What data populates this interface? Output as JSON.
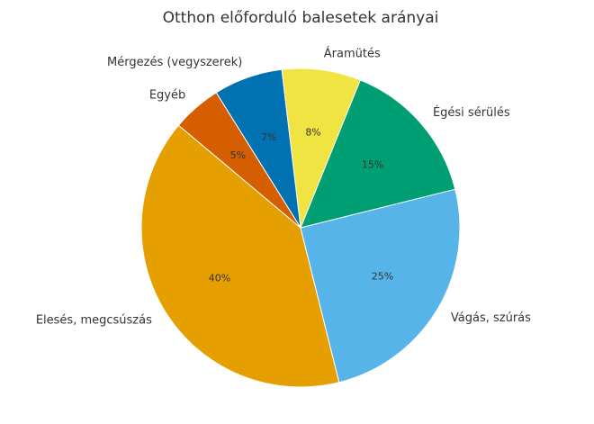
{
  "chart_data": {
    "type": "pie",
    "title": "Otthon előforduló balesetek arányai",
    "categories": [
      "Elesés, megcsúszás",
      "Vágás, szúrás",
      "Égési sérülés",
      "Áramütés",
      "Mérgezés (vegyszerek)",
      "Egyéb"
    ],
    "values": [
      40,
      25,
      15,
      8,
      7,
      5
    ],
    "value_labels": [
      "40%",
      "25%",
      "15%",
      "8%",
      "7%",
      "5%"
    ],
    "colors": [
      "#E69F00",
      "#56B4E9",
      "#009E73",
      "#F0E442",
      "#0072B2",
      "#D55E00"
    ]
  }
}
